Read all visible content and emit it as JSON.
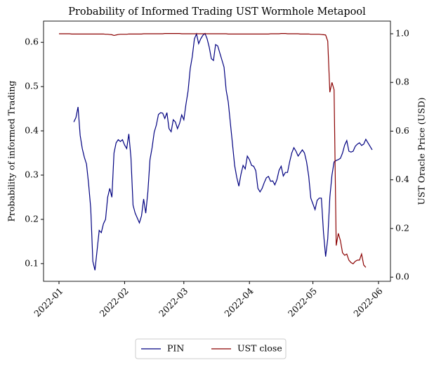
{
  "chart_data": {
    "type": "line",
    "title": "Probability of Informed Trading UST Wormhole Metapool",
    "ylabel": "Probability of informed Trading",
    "y2label": "UST Oracle Price (USD)",
    "categories": [
      "2022-01",
      null,
      null,
      null,
      null,
      null,
      null,
      null,
      null,
      null,
      null,
      null,
      null,
      null,
      null,
      null,
      null,
      null,
      null,
      null,
      null,
      null,
      null,
      null,
      null,
      null,
      null,
      null,
      null,
      null,
      null,
      "2022-02",
      null,
      null,
      null,
      null,
      null,
      null,
      null,
      null,
      null,
      null,
      null,
      null,
      null,
      null,
      null,
      null,
      null,
      null,
      null,
      null,
      null,
      null,
      null,
      null,
      null,
      null,
      null,
      "2022-03",
      null,
      null,
      null,
      null,
      null,
      null,
      null,
      null,
      null,
      null,
      null,
      null,
      null,
      null,
      null,
      null,
      null,
      null,
      null,
      null,
      null,
      null,
      null,
      null,
      null,
      null,
      null,
      null,
      null,
      null,
      "2022-04",
      null,
      null,
      null,
      null,
      null,
      null,
      null,
      null,
      null,
      null,
      null,
      null,
      null,
      null,
      null,
      null,
      null,
      null,
      null,
      null,
      null,
      null,
      null,
      null,
      null,
      null,
      null,
      null,
      null,
      "2022-05",
      null,
      null,
      null,
      null,
      null,
      null,
      null,
      null,
      null,
      null,
      null,
      null,
      null,
      null,
      null,
      null,
      null,
      null,
      null,
      null,
      null,
      null,
      null,
      null,
      null,
      null,
      null,
      null,
      null,
      null,
      "2022-06"
    ],
    "series": [
      {
        "name": "PIN",
        "color": "#000080",
        "values": [
          null,
          null,
          null,
          null,
          null,
          null,
          null,
          0.42,
          0.43,
          0.454,
          0.39,
          0.36,
          0.34,
          0.325,
          0.28,
          0.225,
          0.105,
          0.085,
          0.13,
          0.175,
          0.17,
          0.19,
          0.2,
          0.25,
          0.27,
          0.25,
          0.35,
          0.373,
          0.38,
          0.376,
          0.38,
          0.368,
          0.36,
          0.393,
          0.34,
          0.232,
          0.214,
          0.203,
          0.192,
          0.208,
          0.246,
          0.214,
          0.262,
          0.335,
          0.362,
          0.397,
          0.413,
          0.437,
          0.441,
          0.44,
          0.428,
          0.441,
          0.405,
          0.398,
          0.425,
          0.42,
          0.405,
          0.417,
          0.436,
          0.425,
          0.46,
          0.49,
          0.54,
          0.568,
          0.608,
          0.619,
          0.597,
          0.608,
          0.616,
          0.62,
          0.608,
          0.589,
          0.563,
          0.559,
          0.595,
          0.592,
          0.576,
          0.56,
          0.544,
          0.492,
          0.465,
          0.417,
          0.37,
          0.322,
          0.295,
          0.275,
          0.302,
          0.322,
          0.314,
          0.343,
          0.335,
          0.322,
          0.32,
          0.31,
          0.27,
          0.262,
          0.27,
          0.283,
          0.294,
          0.297,
          0.286,
          0.287,
          0.278,
          0.29,
          0.311,
          0.32,
          0.298,
          0.306,
          0.306,
          0.33,
          0.35,
          0.362,
          0.354,
          0.343,
          0.35,
          0.357,
          0.35,
          0.33,
          0.298,
          0.248,
          0.235,
          0.222,
          0.243,
          0.248,
          0.248,
          0.17,
          0.116,
          0.156,
          0.25,
          0.3,
          0.33,
          0.333,
          0.335,
          0.338,
          0.35,
          0.368,
          0.378,
          0.354,
          0.352,
          0.354,
          0.365,
          0.37,
          0.373,
          0.367,
          0.37,
          0.381,
          0.373,
          0.365,
          0.357,
          null,
          null,
          null
        ]
      },
      {
        "name": "UST close",
        "color": "#8b0000",
        "axis": "y2",
        "values": [
          1.0,
          1.0,
          1.0,
          1.0,
          1.0,
          1.0,
          0.999,
          0.999,
          0.999,
          0.999,
          0.999,
          0.999,
          0.999,
          0.999,
          0.999,
          0.999,
          0.999,
          0.999,
          0.999,
          0.999,
          0.999,
          0.999,
          0.998,
          0.998,
          0.997,
          0.996,
          0.993,
          0.995,
          0.997,
          0.998,
          0.998,
          0.998,
          0.998,
          0.999,
          0.999,
          0.999,
          0.999,
          0.999,
          0.999,
          0.999,
          1.0,
          1.0,
          1.0,
          1.0,
          1.0,
          1.0,
          1.0,
          1.0,
          1.0,
          1.0,
          1.001,
          1.001,
          1.001,
          1.001,
          1.001,
          1.001,
          1.001,
          1.001,
          1.0,
          1.0,
          1.0,
          1.0,
          1.0,
          1.0,
          1.0,
          1.0,
          1.0,
          1.0,
          1.0,
          1.0,
          1.0,
          1.0,
          1.0,
          1.0,
          1.0,
          1.0,
          1.0,
          1.0,
          1.0,
          1.0,
          0.999,
          0.999,
          0.999,
          0.999,
          0.999,
          0.999,
          0.999,
          0.999,
          0.999,
          0.999,
          0.999,
          0.999,
          0.999,
          0.999,
          0.999,
          0.999,
          0.999,
          0.999,
          0.999,
          0.999,
          1.0,
          1.0,
          1.0,
          1.0,
          1.0,
          1.001,
          1.001,
          1.001,
          1.0,
          1.0,
          1.0,
          1.0,
          1.0,
          1.0,
          0.999,
          0.999,
          0.999,
          0.999,
          0.999,
          0.998,
          0.998,
          0.998,
          0.998,
          0.998,
          0.997,
          0.996,
          0.995,
          0.97,
          0.76,
          0.8,
          0.77,
          0.13,
          0.18,
          0.15,
          0.1,
          0.09,
          0.095,
          0.07,
          0.06,
          0.055,
          0.065,
          0.07,
          0.07,
          0.095,
          0.05,
          0.04,
          null,
          null,
          null,
          null,
          null,
          null
        ]
      }
    ],
    "ylim": [
      0.06,
      0.648
    ],
    "yticks": [
      0.1,
      0.2,
      0.3,
      0.4,
      0.5,
      0.6
    ],
    "y2lim": [
      -0.017,
      1.052
    ],
    "y2ticks": [
      {
        "value": 0,
        "label": "0.0"
      },
      0.2,
      0.4,
      0.6,
      0.8,
      {
        "value": 1,
        "label": "1.0"
      }
    ],
    "legend": "lower center"
  }
}
